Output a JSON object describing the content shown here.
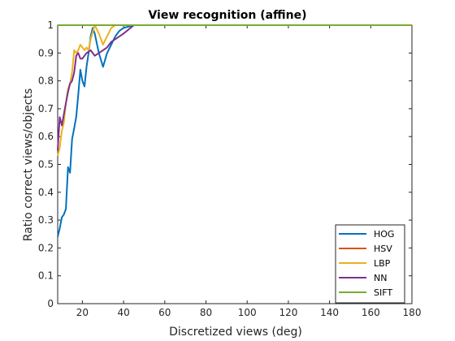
{
  "chart_data": {
    "type": "line",
    "title": "View recognition (affine)",
    "xlabel": "Discretized views (deg)",
    "ylabel": "Ratio correct views/objects",
    "xlim": [
      8,
      180
    ],
    "ylim": [
      0,
      1
    ],
    "xticks": [
      "20",
      "40",
      "60",
      "80",
      "100",
      "120",
      "140",
      "160",
      "180"
    ],
    "xtick_values": [
      20,
      40,
      60,
      80,
      100,
      120,
      140,
      160,
      180
    ],
    "yticks": [
      "0",
      "0.1",
      "0.2",
      "0.3",
      "0.4",
      "0.5",
      "0.6",
      "0.7",
      "0.8",
      "0.9",
      "1"
    ],
    "ytick_values": [
      0,
      0.1,
      0.2,
      0.3,
      0.4,
      0.5,
      0.6,
      0.7,
      0.8,
      0.9,
      1
    ],
    "grid": false,
    "legend_position": "bottom-right",
    "series": [
      {
        "name": "HOG",
        "color": "#0072BD",
        "x": [
          8,
          9,
          10,
          11,
          12,
          13,
          14,
          15,
          16,
          17,
          18,
          19,
          20,
          21,
          22,
          23,
          24,
          25,
          26,
          28,
          30,
          32,
          34,
          36,
          38,
          40,
          45,
          180
        ],
        "y": [
          0.24,
          0.27,
          0.31,
          0.32,
          0.34,
          0.49,
          0.47,
          0.59,
          0.63,
          0.67,
          0.75,
          0.84,
          0.8,
          0.78,
          0.85,
          0.9,
          0.96,
          0.99,
          0.97,
          0.9,
          0.85,
          0.9,
          0.93,
          0.96,
          0.98,
          0.99,
          1.0,
          1.0
        ]
      },
      {
        "name": "HSV",
        "color": "#D95319",
        "x": [
          8,
          180
        ],
        "y": [
          1.0,
          1.0
        ]
      },
      {
        "name": "LBP",
        "color": "#EDB120",
        "x": [
          8,
          9,
          10,
          11,
          12,
          13,
          14,
          15,
          16,
          17,
          18,
          19,
          20,
          21,
          22,
          23,
          24,
          26,
          28,
          30,
          32,
          34,
          36,
          40,
          45,
          180
        ],
        "y": [
          0.53,
          0.56,
          0.62,
          0.65,
          0.72,
          0.77,
          0.79,
          0.83,
          0.91,
          0.9,
          0.91,
          0.93,
          0.92,
          0.91,
          0.92,
          0.91,
          0.95,
          1.0,
          0.97,
          0.93,
          0.96,
          0.99,
          1.0,
          1.0,
          1.0,
          1.0
        ]
      },
      {
        "name": "NN",
        "color": "#7E2F8E",
        "x": [
          8,
          9,
          10,
          11,
          12,
          13,
          14,
          15,
          16,
          17,
          18,
          19,
          20,
          22,
          24,
          26,
          28,
          30,
          32,
          34,
          36,
          40,
          45,
          180
        ],
        "y": [
          0.55,
          0.67,
          0.64,
          0.68,
          0.72,
          0.76,
          0.79,
          0.8,
          0.83,
          0.89,
          0.9,
          0.88,
          0.88,
          0.9,
          0.91,
          0.89,
          0.9,
          0.91,
          0.92,
          0.94,
          0.95,
          0.97,
          1.0,
          1.0
        ]
      },
      {
        "name": "SIFT",
        "color": "#77AC30",
        "x": [
          8,
          180
        ],
        "y": [
          1.0,
          1.0
        ]
      }
    ]
  }
}
